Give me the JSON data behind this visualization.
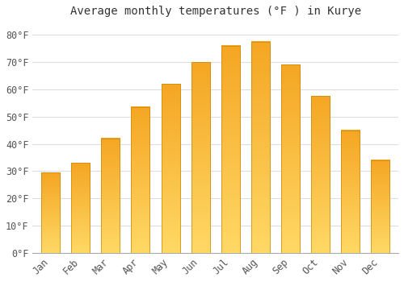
{
  "title": "Average monthly temperatures (°F ) in Kurye",
  "months": [
    "Jan",
    "Feb",
    "Mar",
    "Apr",
    "May",
    "Jun",
    "Jul",
    "Aug",
    "Sep",
    "Oct",
    "Nov",
    "Dec"
  ],
  "values": [
    29.5,
    33.0,
    42.0,
    53.5,
    62.0,
    70.0,
    76.0,
    77.5,
    69.0,
    57.5,
    45.0,
    34.0
  ],
  "bar_color_bottom": "#F5A623",
  "bar_color_top": "#FFD966",
  "bar_edge_color": "#C8860A",
  "ylim": [
    0,
    85
  ],
  "yticks": [
    0,
    10,
    20,
    30,
    40,
    50,
    60,
    70,
    80
  ],
  "ytick_labels": [
    "0°F",
    "10°F",
    "20°F",
    "30°F",
    "40°F",
    "50°F",
    "60°F",
    "70°F",
    "80°F"
  ],
  "background_color": "#ffffff",
  "grid_color": "#dddddd",
  "title_fontsize": 10,
  "tick_fontsize": 8.5,
  "font_family": "monospace"
}
